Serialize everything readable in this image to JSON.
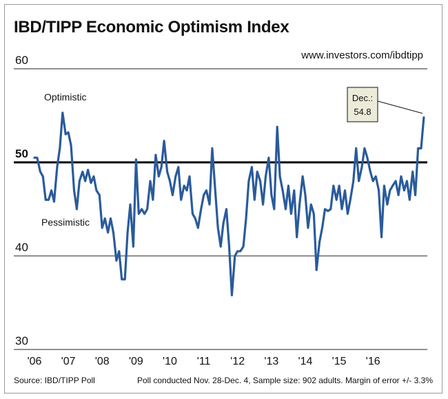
{
  "header": {
    "title": "IBD/TIPP Economic Optimism Index",
    "url": "www.investors.com/ibdtipp"
  },
  "footer": {
    "source": "Source: IBD/TIPP Poll",
    "note": "Poll conducted Nov. 28-Dec. 4, Sample size: 902 adults. Margin of error +/- 3.3%"
  },
  "colors": {
    "line": "#2a5b9b",
    "reference": "#000000",
    "callout_bg": "#ecebd9"
  },
  "chart_data": {
    "type": "line",
    "title": "IBD/TIPP Economic Optimism Index",
    "xlabel": "",
    "ylabel": "",
    "ylim": [
      30,
      60
    ],
    "yticks": [
      30,
      40,
      50,
      60
    ],
    "xlim": [
      2006.0,
      2017.4
    ],
    "xtick_labels": [
      "'06",
      "'07",
      "'08",
      "'09",
      "'10",
      "'11",
      "'12",
      "'13",
      "'14",
      "'15",
      "'16"
    ],
    "xtick_positions": [
      2006,
      2007,
      2008,
      2009,
      2010,
      2011,
      2012,
      2013,
      2014,
      2015,
      2016
    ],
    "grid": "horizontal",
    "reference_line": 50,
    "annotations": {
      "optimistic": "Optimistic",
      "pessimistic": "Pessimistic"
    },
    "callout": {
      "line1": "Dec.:",
      "line2": "54.8",
      "value": 54.8
    },
    "series": [
      {
        "values": [
          [
            2006.0,
            50.5
          ],
          [
            2006.08,
            50.5
          ],
          [
            2006.17,
            49.0
          ],
          [
            2006.25,
            48.5
          ],
          [
            2006.33,
            46.0
          ],
          [
            2006.42,
            46.0
          ],
          [
            2006.5,
            47.0
          ],
          [
            2006.58,
            45.8
          ],
          [
            2006.67,
            49.5
          ],
          [
            2006.75,
            51.5
          ],
          [
            2006.83,
            55.3
          ],
          [
            2006.92,
            53.0
          ],
          [
            2007.0,
            53.2
          ],
          [
            2007.08,
            51.8
          ],
          [
            2007.17,
            47.0
          ],
          [
            2007.25,
            45.0
          ],
          [
            2007.33,
            48.0
          ],
          [
            2007.42,
            49.0
          ],
          [
            2007.5,
            48.0
          ],
          [
            2007.58,
            49.2
          ],
          [
            2007.67,
            47.8
          ],
          [
            2007.75,
            48.5
          ],
          [
            2007.83,
            47.0
          ],
          [
            2007.92,
            46.5
          ],
          [
            2008.0,
            43.0
          ],
          [
            2008.08,
            44.0
          ],
          [
            2008.17,
            42.5
          ],
          [
            2008.25,
            44.0
          ],
          [
            2008.33,
            42.5
          ],
          [
            2008.42,
            39.5
          ],
          [
            2008.5,
            40.5
          ],
          [
            2008.58,
            37.5
          ],
          [
            2008.67,
            37.5
          ],
          [
            2008.75,
            42.5
          ],
          [
            2008.83,
            45.5
          ],
          [
            2008.92,
            41.0
          ],
          [
            2009.0,
            50.3
          ],
          [
            2009.08,
            44.5
          ],
          [
            2009.17,
            45.0
          ],
          [
            2009.25,
            44.5
          ],
          [
            2009.33,
            45.0
          ],
          [
            2009.42,
            48.0
          ],
          [
            2009.5,
            46.0
          ],
          [
            2009.58,
            50.8
          ],
          [
            2009.67,
            48.5
          ],
          [
            2009.75,
            49.5
          ],
          [
            2009.83,
            52.3
          ],
          [
            2009.92,
            49.0
          ],
          [
            2010.0,
            48.0
          ],
          [
            2010.08,
            46.5
          ],
          [
            2010.17,
            48.5
          ],
          [
            2010.25,
            49.5
          ],
          [
            2010.33,
            46.0
          ],
          [
            2010.42,
            47.5
          ],
          [
            2010.5,
            47.0
          ],
          [
            2010.58,
            48.5
          ],
          [
            2010.67,
            44.5
          ],
          [
            2010.75,
            44.0
          ],
          [
            2010.83,
            43.0
          ],
          [
            2010.92,
            45.0
          ],
          [
            2011.0,
            46.5
          ],
          [
            2011.08,
            47.0
          ],
          [
            2011.17,
            45.5
          ],
          [
            2011.25,
            51.5
          ],
          [
            2011.33,
            47.5
          ],
          [
            2011.42,
            43.0
          ],
          [
            2011.5,
            41.0
          ],
          [
            2011.58,
            43.5
          ],
          [
            2011.67,
            45.0
          ],
          [
            2011.75,
            41.0
          ],
          [
            2011.83,
            35.8
          ],
          [
            2011.92,
            40.0
          ],
          [
            2012.0,
            40.5
          ],
          [
            2012.08,
            40.5
          ],
          [
            2012.17,
            41.0
          ],
          [
            2012.25,
            44.0
          ],
          [
            2012.33,
            48.0
          ],
          [
            2012.42,
            49.5
          ],
          [
            2012.5,
            46.0
          ],
          [
            2012.58,
            49.0
          ],
          [
            2012.67,
            48.0
          ],
          [
            2012.75,
            45.5
          ],
          [
            2012.83,
            48.5
          ],
          [
            2012.92,
            50.5
          ],
          [
            2013.0,
            46.5
          ],
          [
            2013.08,
            45.0
          ],
          [
            2013.17,
            53.8
          ],
          [
            2013.25,
            48.5
          ],
          [
            2013.33,
            47.0
          ],
          [
            2013.42,
            45.0
          ],
          [
            2013.5,
            47.5
          ],
          [
            2013.58,
            44.5
          ],
          [
            2013.67,
            47.0
          ],
          [
            2013.75,
            42.0
          ],
          [
            2013.83,
            45.5
          ],
          [
            2013.92,
            48.5
          ],
          [
            2014.0,
            46.5
          ],
          [
            2014.08,
            43.0
          ],
          [
            2014.17,
            45.5
          ],
          [
            2014.25,
            44.5
          ],
          [
            2014.33,
            38.5
          ],
          [
            2014.42,
            41.5
          ],
          [
            2014.5,
            43.0
          ],
          [
            2014.58,
            45.0
          ],
          [
            2014.67,
            44.8
          ],
          [
            2014.75,
            45.0
          ],
          [
            2014.83,
            47.5
          ],
          [
            2014.92,
            46.0
          ],
          [
            2015.0,
            47.5
          ],
          [
            2015.08,
            45.0
          ],
          [
            2015.17,
            47.0
          ],
          [
            2015.25,
            44.5
          ],
          [
            2015.33,
            46.0
          ],
          [
            2015.42,
            48.0
          ],
          [
            2015.5,
            51.5
          ],
          [
            2015.58,
            48.0
          ],
          [
            2015.67,
            49.5
          ],
          [
            2015.75,
            51.5
          ],
          [
            2015.83,
            50.5
          ],
          [
            2015.92,
            49.0
          ],
          [
            2016.0,
            48.0
          ],
          [
            2016.08,
            48.5
          ],
          [
            2016.17,
            47.0
          ],
          [
            2016.25,
            42.0
          ],
          [
            2016.33,
            47.5
          ],
          [
            2016.42,
            45.5
          ],
          [
            2016.5,
            47.0
          ],
          [
            2016.58,
            47.5
          ],
          [
            2016.67,
            48.0
          ],
          [
            2016.75,
            46.5
          ],
          [
            2016.83,
            48.5
          ],
          [
            2016.92,
            47.0
          ],
          [
            2017.0,
            48.0
          ],
          [
            2017.08,
            46.0
          ],
          [
            2017.17,
            49.0
          ],
          [
            2017.25,
            46.5
          ],
          [
            2017.33,
            51.5
          ],
          [
            2017.42,
            51.5
          ],
          [
            2017.5,
            54.8
          ]
        ]
      }
    ]
  }
}
